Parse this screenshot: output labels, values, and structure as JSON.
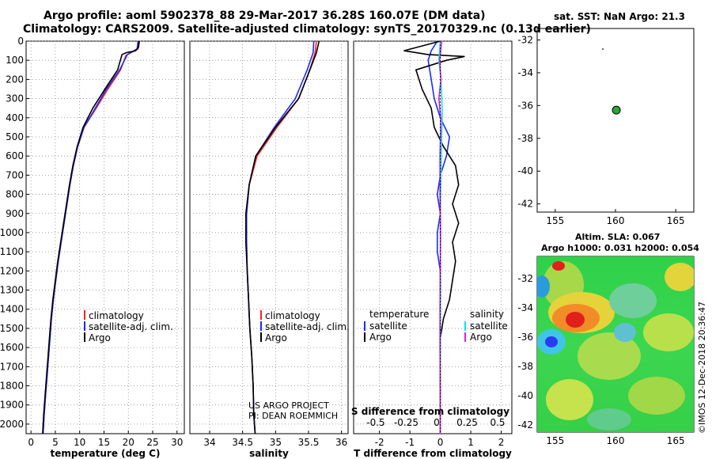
{
  "header": {
    "title_line1": "Argo profile: aoml 5902378_88 29-Mar-2017 36.28S 160.07E (DM data)",
    "title_line2": "Climatology: CARS2009. Satellite-adjusted climatology: synTS_20170329.nc (0.13d earlier)"
  },
  "credits": {
    "project": "US ARGO PROJECT",
    "pi": "PI: DEAN ROEMMICH",
    "imos": "©IMOS 12-Dec-2018 20:36:47"
  },
  "colors": {
    "climatology": "#ff2020",
    "satellite": "#1a2bff",
    "argo": "#000000",
    "sal_satellite": "#00e6e6",
    "sal_argo": "#e020e0"
  },
  "chart_data": [
    {
      "type": "line",
      "id": "temperature",
      "xlabel": "temperature (deg C)",
      "ylabel": "",
      "xlim": [
        -1,
        31.5
      ],
      "ylim": [
        2050,
        0
      ],
      "xticks": [
        0,
        5,
        10,
        15,
        20,
        25,
        30
      ],
      "yticks": [
        0,
        100,
        200,
        300,
        400,
        500,
        600,
        700,
        800,
        900,
        1000,
        1100,
        1200,
        1300,
        1400,
        1500,
        1600,
        1700,
        1800,
        1900,
        2000
      ],
      "legend": [
        "climatology",
        "satellite-adj. clim.",
        "Argo"
      ],
      "series": [
        {
          "name": "climatology",
          "color": "#ff2020",
          "x": [
            22.3,
            22.0,
            19.5,
            18.4,
            15.8,
            13.4,
            10.9,
            9.6,
            8.7,
            8.0,
            7.4,
            6.8,
            6.2,
            5.6,
            5.1,
            4.6,
            4.2,
            3.9,
            3.6,
            3.3,
            3.0,
            2.7,
            2.5
          ],
          "y": [
            0,
            40,
            75,
            150,
            250,
            350,
            450,
            550,
            650,
            750,
            850,
            950,
            1050,
            1150,
            1250,
            1350,
            1450,
            1550,
            1650,
            1750,
            1850,
            1950,
            2050
          ]
        },
        {
          "name": "satellite-adj. clim.",
          "color": "#1a2bff",
          "x": [
            22.0,
            21.8,
            19.8,
            18.2,
            15.5,
            13.2,
            10.9,
            9.6,
            8.7,
            8.0,
            7.4,
            6.8,
            6.2,
            5.6,
            5.1,
            4.6,
            4.2,
            3.9,
            3.6,
            3.3,
            3.0,
            2.7,
            2.5
          ],
          "y": [
            0,
            40,
            70,
            150,
            250,
            350,
            450,
            550,
            650,
            750,
            850,
            950,
            1050,
            1150,
            1250,
            1350,
            1450,
            1550,
            1650,
            1750,
            1850,
            1950,
            2050
          ]
        },
        {
          "name": "Argo",
          "color": "#000000",
          "x": [
            22.2,
            22.1,
            21.5,
            19.6,
            18.7,
            17.8,
            15.2,
            12.7,
            10.7,
            9.5,
            8.6,
            7.9,
            7.3,
            6.7,
            6.1,
            5.5,
            5.0,
            4.5,
            4.1,
            3.8,
            3.5,
            3.2,
            2.9,
            2.6,
            2.4
          ],
          "y": [
            0,
            30,
            50,
            60,
            70,
            150,
            250,
            350,
            450,
            550,
            650,
            750,
            850,
            950,
            1050,
            1150,
            1250,
            1350,
            1450,
            1550,
            1650,
            1750,
            1850,
            1950,
            2050
          ]
        }
      ]
    },
    {
      "type": "line",
      "id": "salinity",
      "xlabel": "salinity",
      "xlim": [
        33.7,
        36.1
      ],
      "ylim": [
        2050,
        0
      ],
      "xticks": [
        34,
        34.5,
        35,
        35.5,
        36
      ],
      "legend": [
        "climatology",
        "satellite-adj. clim.",
        "Argo"
      ],
      "series": [
        {
          "name": "climatology",
          "color": "#ff2020",
          "x": [
            35.62,
            35.6,
            35.52,
            35.35,
            35.02,
            34.72,
            34.6,
            34.56,
            34.56,
            34.57,
            34.59,
            34.61,
            34.64,
            34.66,
            34.67,
            34.69
          ],
          "y": [
            0,
            60,
            150,
            300,
            450,
            600,
            750,
            900,
            1050,
            1200,
            1350,
            1500,
            1650,
            1800,
            1950,
            2050
          ]
        },
        {
          "name": "satellite-adj. clim.",
          "color": "#1a2bff",
          "x": [
            35.58,
            35.57,
            35.48,
            35.3,
            34.98,
            34.7,
            34.6,
            34.56,
            34.56,
            34.57,
            34.59,
            34.61,
            34.64,
            34.66,
            34.67,
            34.69
          ],
          "y": [
            0,
            60,
            150,
            300,
            450,
            600,
            750,
            900,
            1050,
            1200,
            1350,
            1500,
            1650,
            1800,
            1950,
            2050
          ]
        },
        {
          "name": "Argo",
          "color": "#000000",
          "x": [
            35.66,
            35.62,
            35.52,
            35.35,
            35.0,
            34.7,
            34.6,
            34.55,
            34.55,
            34.57,
            34.59,
            34.61,
            34.64,
            34.66,
            34.67,
            34.69
          ],
          "y": [
            0,
            60,
            150,
            300,
            450,
            600,
            750,
            900,
            1050,
            1200,
            1350,
            1500,
            1650,
            1800,
            1950,
            2050
          ]
        }
      ]
    },
    {
      "type": "line",
      "id": "difference",
      "xlabel": "T difference from climatology",
      "xlabel_top": "S difference from climatology",
      "xlim": [
        -2.85,
        2.35
      ],
      "ylim": [
        2050,
        0
      ],
      "xticks": [
        -2,
        -1,
        0,
        1,
        2
      ],
      "xticks_s": [
        "-0.5",
        "-0.25",
        "0",
        "0.25",
        "0.5"
      ],
      "legend_left": {
        "title": "temperature",
        "items": [
          "satellite",
          "Argo"
        ]
      },
      "legend_right": {
        "title": "salinity",
        "items": [
          "satellite",
          "Argo"
        ]
      },
      "series": [
        {
          "name": "temperature satellite",
          "color": "#1a2bff",
          "x": [
            -0.1,
            -0.3,
            -0.4,
            -0.3,
            -0.2,
            0.0,
            0.3,
            0.2,
            0.0,
            -0.1,
            0.0,
            -0.1,
            -0.1,
            0.0,
            0.0,
            0.0,
            0.0,
            0.0,
            0.0,
            0.0
          ],
          "y": [
            0,
            50,
            100,
            200,
            300,
            400,
            500,
            600,
            700,
            800,
            900,
            1000,
            1100,
            1200,
            1400,
            1600,
            1700,
            1800,
            1900,
            2050
          ]
        },
        {
          "name": "temperature Argo",
          "color": "#000000",
          "x": [
            0.0,
            -1.2,
            -0.4,
            0.8,
            0.2,
            -0.8,
            -0.6,
            -0.3,
            -0.2,
            0.1,
            0.5,
            0.6,
            0.4,
            0.6,
            0.4,
            0.5,
            0.4,
            0.3,
            0.1,
            0.0,
            0.0,
            0.0,
            0.0
          ],
          "y": [
            0,
            50,
            70,
            80,
            100,
            150,
            250,
            350,
            450,
            550,
            650,
            750,
            850,
            950,
            1050,
            1150,
            1250,
            1350,
            1450,
            1550,
            1700,
            1850,
            2050
          ]
        },
        {
          "name": "salinity satellite",
          "color": "#00e6e6",
          "x": [
            0.0,
            -0.05,
            0.02,
            0.05,
            0.06,
            0.04,
            0.02,
            0.0,
            0.0,
            0.01,
            0.0,
            0.0,
            0.0,
            0.0
          ],
          "y": [
            0,
            100,
            200,
            300,
            400,
            500,
            700,
            900,
            1100,
            1300,
            1500,
            1700,
            1900,
            2050
          ]
        },
        {
          "name": "salinity Argo",
          "color": "#e020e0",
          "x": [
            0.05,
            -0.02,
            0.02,
            -0.05,
            0.01,
            0.01,
            -0.01,
            -0.01,
            0.01,
            0.0,
            -0.01,
            -0.01,
            0.0,
            0.0,
            0.0
          ],
          "y": [
            0,
            100,
            200,
            300,
            400,
            450,
            600,
            800,
            1000,
            1200,
            1400,
            1600,
            1800,
            1950,
            2050
          ]
        }
      ]
    },
    {
      "type": "scatter",
      "id": "sst-map",
      "title": "sat. SST: NaN Argo: 21.3",
      "xlim": [
        153.5,
        166.5
      ],
      "ylim": [
        -42.5,
        -31.3
      ],
      "xticks": [
        155,
        160,
        165
      ],
      "yticks": [
        -32,
        -34,
        -36,
        -38,
        -40,
        -42
      ],
      "points": [
        {
          "lon": 160.07,
          "lat": -36.28,
          "label": "Argo float"
        }
      ]
    },
    {
      "type": "heatmap",
      "id": "sla-map",
      "title_line1": "Altim. SLA: 0.067",
      "title_line2": "Argo h1000: 0.031 h2000: 0.054",
      "xlim": [
        153.5,
        166.5
      ],
      "ylim": [
        -42.5,
        -30.5
      ],
      "xticks": [
        155,
        160,
        165
      ],
      "yticks": [
        -32,
        -34,
        -36,
        -38,
        -40,
        -42
      ],
      "points": [
        {
          "lon": 160.07,
          "lat": -36.28,
          "label": "Argo float"
        }
      ]
    }
  ]
}
